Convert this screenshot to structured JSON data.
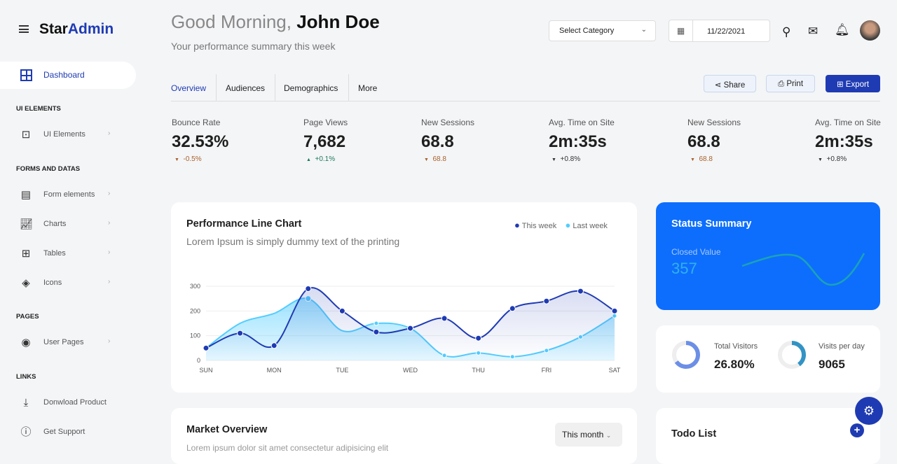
{
  "brand": {
    "part1": "Star",
    "part2": "Admin"
  },
  "sidebar": {
    "active": {
      "label": "Dashboard",
      "icon": "grid-icon"
    },
    "sections": [
      {
        "title": "UI ELEMENTS",
        "items": [
          {
            "label": "UI Elements",
            "icon": "layout-icon"
          }
        ]
      },
      {
        "title": "FORMS AND DATAS",
        "items": [
          {
            "label": "Form elements",
            "icon": "form-icon"
          },
          {
            "label": "Charts",
            "icon": "chart-icon"
          },
          {
            "label": "Tables",
            "icon": "table-icon"
          },
          {
            "label": "Icons",
            "icon": "layers-icon"
          }
        ]
      },
      {
        "title": "PAGES",
        "items": [
          {
            "label": "User Pages",
            "icon": "user-circle-icon"
          }
        ]
      },
      {
        "title": "LINKS",
        "items": [
          {
            "label": "Donwload Product",
            "icon": "download-icon"
          },
          {
            "label": "Get Support",
            "icon": "info-icon"
          }
        ]
      }
    ]
  },
  "header": {
    "greeting": "Good Morning,",
    "name": "John Doe",
    "subtitle": "Your performance summary this week",
    "category": "Select Category",
    "date": "11/22/2021"
  },
  "tabs": [
    "Overview",
    "Audiences",
    "Demographics",
    "More"
  ],
  "actions": {
    "share": "Share",
    "print": "Print",
    "export": "Export"
  },
  "stats": [
    {
      "label": "Bounce Rate",
      "value": "32.53%",
      "delta": "-0.5%",
      "dir": "down"
    },
    {
      "label": "Page Views",
      "value": "7,682",
      "delta": "+0.1%",
      "dir": "up"
    },
    {
      "label": "New Sessions",
      "value": "68.8",
      "delta": "68.8",
      "dir": "down"
    },
    {
      "label": "Avg. Time on Site",
      "value": "2m:35s",
      "delta": "+0.8%",
      "dir": "neutral"
    },
    {
      "label": "New Sessions",
      "value": "68.8",
      "delta": "68.8",
      "dir": "down"
    },
    {
      "label": "Avg. Time on Site",
      "value": "2m:35s",
      "delta": "+0.8%",
      "dir": "neutral"
    }
  ],
  "perf": {
    "title": "Performance Line Chart",
    "subtitle": "Lorem Ipsum is simply dummy text of the printing"
  },
  "chart_data": {
    "type": "area",
    "x_ticks": [
      "SUN",
      "MON",
      "TUE",
      "WED",
      "THU",
      "FRI",
      "SAT"
    ],
    "y_ticks": [
      "0",
      "100",
      "200",
      "300"
    ],
    "ylim": [
      0,
      300
    ],
    "grid": true,
    "legend": "top-right",
    "series": [
      {
        "name": "This week",
        "color": "#1f3bb3",
        "values": [
          50,
          110,
          60,
          290,
          200,
          115,
          130,
          170,
          90,
          210,
          240,
          280,
          200
        ]
      },
      {
        "name": "Last week",
        "color": "#52cdff",
        "values": [
          50,
          150,
          190,
          250,
          120,
          150,
          130,
          20,
          30,
          15,
          40,
          95,
          180
        ]
      }
    ]
  },
  "status": {
    "title": "Status Summary",
    "label": "Closed Value",
    "value": "357"
  },
  "visitors": {
    "label": "Total Visitors",
    "value": "26.80%",
    "fill": 0.65
  },
  "visits": {
    "label": "Visits per day",
    "value": "9065",
    "fill": 0.4
  },
  "market": {
    "title": "Market Overview",
    "subtitle": "Lorem ipsum dolor sit amet consectetur adipisicing elit",
    "period": "This month"
  },
  "todo": {
    "title": "Todo List"
  }
}
